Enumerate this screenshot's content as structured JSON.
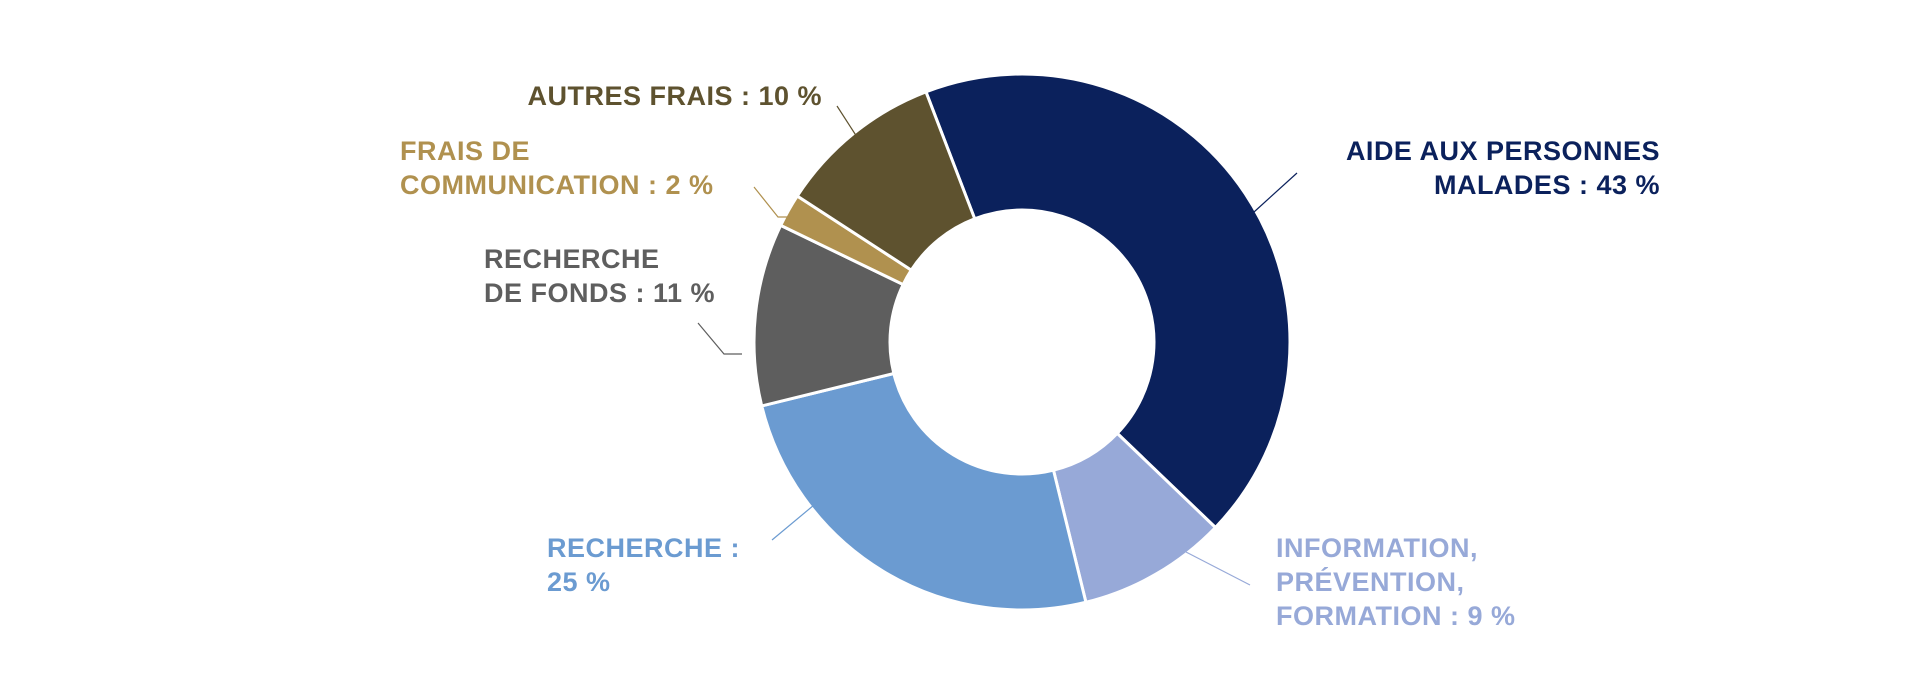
{
  "chart_data": {
    "type": "pie",
    "donut": true,
    "slices": [
      {
        "name": "AIDE AUX PERSONNES MALADES",
        "value": 43,
        "color": "#0b215c",
        "label_lines": [
          "AIDE AUX PERSONNES",
          "MALADES : 43 %"
        ]
      },
      {
        "name": "INFORMATION, PRÉVENTION, FORMATION",
        "value": 9,
        "color": "#97a9d8",
        "label_lines": [
          "INFORMATION,",
          "PRÉVENTION,",
          "FORMATION : 9 %"
        ]
      },
      {
        "name": "RECHERCHE",
        "value": 25,
        "color": "#6b9bd1",
        "label_lines": [
          "RECHERCHE :",
          "25 %"
        ]
      },
      {
        "name": "RECHERCHE DE FONDS",
        "value": 11,
        "color": "#5e5e5e",
        "label_lines": [
          "RECHERCHE",
          "DE FONDS : 11 %"
        ]
      },
      {
        "name": "FRAIS DE COMMUNICATION",
        "value": 2,
        "color": "#b0914f",
        "label_lines": [
          "FRAIS DE",
          "COMMUNICATION : 2 %"
        ]
      },
      {
        "name": "AUTRES FRAIS",
        "value": 10,
        "color": "#5e522f",
        "label_lines": [
          "AUTRES FRAIS : 10 %"
        ]
      }
    ],
    "legend": "none",
    "grid": false
  }
}
